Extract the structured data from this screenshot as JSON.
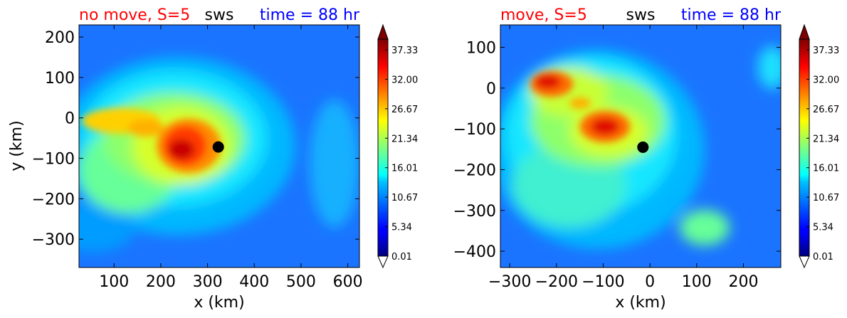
{
  "chart_data": [
    {
      "type": "contour",
      "title_left": "no move, S=5",
      "title_center": "sws",
      "title_right": "time = 88 hr",
      "xlabel": "x (km)",
      "ylabel": "y (km)",
      "xlim": [
        25,
        625
      ],
      "ylim": [
        -370,
        230
      ],
      "xticks": [
        100,
        200,
        300,
        400,
        500,
        600
      ],
      "yticks": [
        200,
        100,
        0,
        -100,
        -200,
        -300
      ],
      "center_marker": {
        "x": 323,
        "y": -72
      },
      "max_region": {
        "x": 255,
        "y": -70
      },
      "colorbar": {
        "range": [
          0.01,
          40
        ],
        "ticks": [
          "37.33",
          "32.00",
          "26.67",
          "21.34",
          "16.01",
          "10.67",
          "5.34",
          "0.01"
        ],
        "extend": "both"
      },
      "colormap": "jet"
    },
    {
      "type": "contour",
      "title_left": "move, S=5",
      "title_center": "sws",
      "title_right": "time = 88 hr",
      "xlabel": "x (km)",
      "ylabel": "",
      "xlim": [
        -320,
        280
      ],
      "ylim": [
        -440,
        155
      ],
      "xticks": [
        -300,
        -200,
        -100,
        0,
        100,
        200
      ],
      "yticks": [
        100,
        0,
        -100,
        -200,
        -300,
        -400
      ],
      "center_marker": {
        "x": -15,
        "y": -145
      },
      "max_region": {
        "x": -75,
        "y": -95
      },
      "colorbar": {
        "range": [
          0.01,
          40
        ],
        "ticks": [
          "37.33",
          "32.00",
          "26.67",
          "21.34",
          "16.01",
          "10.67",
          "5.34",
          "0.01"
        ],
        "extend": "both"
      },
      "colormap": "jet"
    }
  ]
}
